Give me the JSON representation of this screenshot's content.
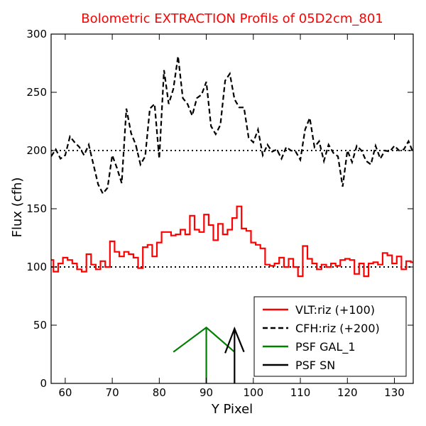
{
  "chart_data": {
    "type": "line",
    "title": "Bolometric EXTRACTION Profils of 05D2cm_801",
    "xlabel": "Y Pixel",
    "ylabel": "Flux (cfh)",
    "xlim": [
      57,
      134
    ],
    "ylim": [
      0,
      300
    ],
    "xticks": [
      60,
      70,
      80,
      90,
      100,
      110,
      120,
      130
    ],
    "yticks": [
      0,
      50,
      100,
      150,
      200,
      250,
      300
    ],
    "grid": false,
    "legend_position": "lower right",
    "reference_lines": [
      {
        "y": 100,
        "style": "dotted",
        "color": "#000000"
      },
      {
        "y": 200,
        "style": "dotted",
        "color": "#000000"
      }
    ],
    "series": [
      {
        "name": "VLT:riz (+100)",
        "color": "#ff0000",
        "style": "steps",
        "x": [
          57,
          58,
          59,
          60,
          61,
          62,
          63,
          64,
          65,
          66,
          67,
          68,
          69,
          70,
          71,
          72,
          73,
          74,
          75,
          76,
          77,
          78,
          79,
          80,
          81,
          82,
          83,
          84,
          85,
          86,
          87,
          88,
          89,
          90,
          91,
          92,
          93,
          94,
          95,
          96,
          97,
          98,
          99,
          100,
          101,
          102,
          103,
          104,
          105,
          106,
          107,
          108,
          109,
          110,
          111,
          112,
          113,
          114,
          115,
          116,
          117,
          118,
          119,
          120,
          121,
          122,
          123,
          124,
          125,
          126,
          127,
          128,
          129,
          130,
          131,
          132,
          133,
          134
        ],
        "values": [
          106,
          96,
          103,
          108,
          106,
          103,
          98,
          96,
          111,
          102,
          98,
          105,
          100,
          122,
          113,
          109,
          113,
          111,
          108,
          99,
          117,
          119,
          109,
          121,
          130,
          130,
          127,
          128,
          132,
          128,
          144,
          132,
          130,
          145,
          136,
          123,
          137,
          128,
          132,
          142,
          152,
          133,
          131,
          121,
          119,
          116,
          102,
          101,
          103,
          108,
          100,
          107,
          100,
          92,
          118,
          107,
          103,
          98,
          102,
          100,
          103,
          101,
          106,
          107,
          106,
          94,
          103,
          92,
          103,
          104,
          102,
          112,
          110,
          103,
          109,
          98,
          105,
          104
        ]
      },
      {
        "name": "CFH:riz (+200)",
        "color": "#000000",
        "style": "dashed",
        "x": [
          57,
          58,
          59,
          60,
          61,
          62,
          63,
          64,
          65,
          66,
          67,
          68,
          69,
          70,
          71,
          72,
          73,
          74,
          75,
          76,
          77,
          78,
          79,
          80,
          81,
          82,
          83,
          84,
          85,
          86,
          87,
          88,
          89,
          90,
          91,
          92,
          93,
          94,
          95,
          96,
          97,
          98,
          99,
          100,
          101,
          102,
          103,
          104,
          105,
          106,
          107,
          108,
          109,
          110,
          111,
          112,
          113,
          114,
          115,
          116,
          117,
          118,
          119,
          120,
          121,
          122,
          123,
          124,
          125,
          126,
          127,
          128,
          129,
          130,
          131,
          132,
          133,
          134
        ],
        "values": [
          195,
          201,
          193,
          196,
          212,
          207,
          203,
          196,
          205,
          188,
          171,
          163,
          168,
          196,
          185,
          172,
          236,
          215,
          205,
          188,
          195,
          236,
          240,
          193,
          269,
          240,
          253,
          281,
          245,
          240,
          230,
          245,
          248,
          259,
          221,
          214,
          222,
          260,
          266,
          244,
          237,
          237,
          211,
          207,
          218,
          196,
          205,
          199,
          201,
          193,
          203,
          200,
          199,
          192,
          218,
          228,
          203,
          208,
          191,
          205,
          198,
          195,
          169,
          200,
          190,
          204,
          200,
          191,
          188,
          204,
          193,
          200,
          199,
          204,
          200,
          201,
          208,
          198
        ]
      },
      {
        "name": "PSF GAL_1",
        "color": "#008000",
        "style": "solid",
        "x": [
          83,
          90,
          96
        ],
        "values": [
          27,
          48,
          27
        ]
      },
      {
        "name": "PSF SN",
        "color": "#000000",
        "style": "solid",
        "x": [
          94,
          96,
          98
        ],
        "values": [
          26,
          47,
          27
        ]
      }
    ],
    "markers": [
      {
        "series": "PSF GAL_1",
        "x": 90,
        "y": 48,
        "color": "#008000"
      },
      {
        "series": "PSF SN",
        "x": 96,
        "y": 47,
        "color": "#000000"
      }
    ]
  }
}
